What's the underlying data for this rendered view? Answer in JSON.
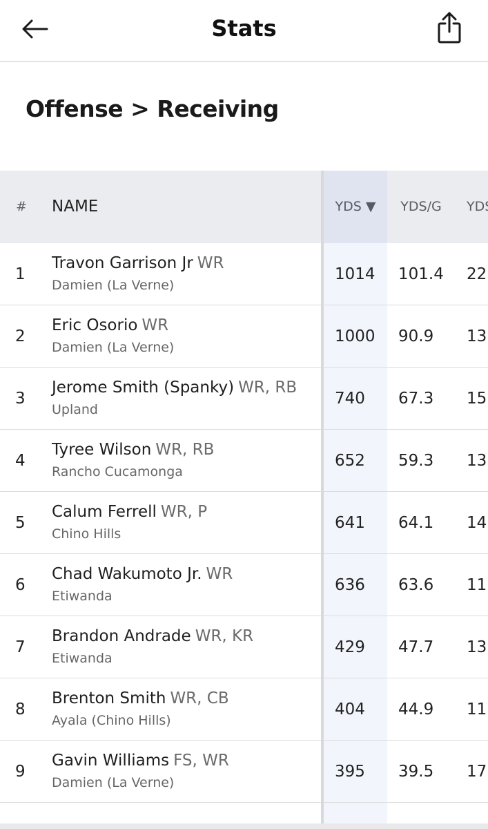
{
  "header": {
    "title": "Stats",
    "back_icon": "arrow-left-icon",
    "share_icon": "share-icon"
  },
  "breadcrumb": "Offense > Receiving",
  "table": {
    "columns": {
      "rank": "#",
      "name": "NAME",
      "yds": "YDS ▼",
      "ydsg": "YDS/G",
      "ydsx": "YDS"
    },
    "rows": [
      {
        "rank": "1",
        "name": "Travon Garrison Jr",
        "pos": "WR",
        "school": "Damien (La Verne)",
        "yds": "1014",
        "ydsg": "101.4",
        "ydsx": "22"
      },
      {
        "rank": "2",
        "name": "Eric Osorio",
        "pos": "WR",
        "school": "Damien (La Verne)",
        "yds": "1000",
        "ydsg": "90.9",
        "ydsx": "13"
      },
      {
        "rank": "3",
        "name": "Jerome Smith (Spanky)",
        "pos": "WR, RB",
        "school": "Upland",
        "yds": "740",
        "ydsg": "67.3",
        "ydsx": "15"
      },
      {
        "rank": "4",
        "name": "Tyree Wilson",
        "pos": "WR, RB",
        "school": "Rancho Cucamonga",
        "yds": "652",
        "ydsg": "59.3",
        "ydsx": "13"
      },
      {
        "rank": "5",
        "name": "Calum Ferrell",
        "pos": "WR, P",
        "school": "Chino Hills",
        "yds": "641",
        "ydsg": "64.1",
        "ydsx": "14"
      },
      {
        "rank": "6",
        "name": "Chad Wakumoto Jr.",
        "pos": "WR",
        "school": "Etiwanda",
        "yds": "636",
        "ydsg": "63.6",
        "ydsx": "11"
      },
      {
        "rank": "7",
        "name": "Brandon Andrade",
        "pos": "WR, KR",
        "school": "Etiwanda",
        "yds": "429",
        "ydsg": "47.7",
        "ydsx": "13"
      },
      {
        "rank": "8",
        "name": "Brenton Smith",
        "pos": "WR, CB",
        "school": "Ayala (Chino Hills)",
        "yds": "404",
        "ydsg": "44.9",
        "ydsx": "11"
      },
      {
        "rank": "9",
        "name": "Gavin Williams",
        "pos": "FS, WR",
        "school": "Damien (La Verne)",
        "yds": "395",
        "ydsg": "39.5",
        "ydsx": "17"
      }
    ]
  }
}
